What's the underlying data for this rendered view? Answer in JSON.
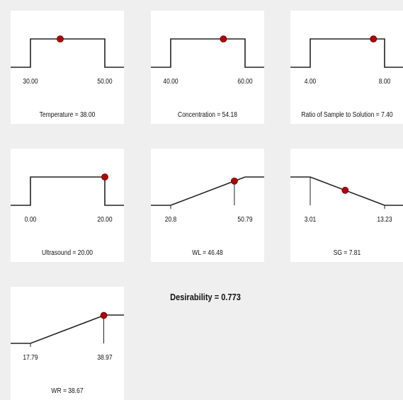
{
  "desirability_label": "Desirability = 0.773",
  "colors": {
    "point": "#b30000",
    "line": "#222222"
  },
  "chart_data": [
    {
      "type": "line",
      "shape": "plateau",
      "low_label": "30.00",
      "high_label": "50.00",
      "value": 38.0,
      "title": "Temperature = 38.00"
    },
    {
      "type": "line",
      "shape": "plateau",
      "low_label": "40.00",
      "high_label": "60.00",
      "value": 54.18,
      "title": "Concentration = 54.18"
    },
    {
      "type": "line",
      "shape": "plateau",
      "low_label": "4.00",
      "high_label": "8.00",
      "value": 7.4,
      "title": "Ratio of Sample to Solution  = 7.40"
    },
    {
      "type": "line",
      "shape": "plateau",
      "low_label": "0.00",
      "high_label": "20.00",
      "value": 20.0,
      "title": "Ultrasound = 20.00"
    },
    {
      "type": "line",
      "shape": "increasing",
      "low_label": "20.8",
      "high_label": "50.79",
      "value": 46.48,
      "title": "WL = 46.48"
    },
    {
      "type": "line",
      "shape": "decreasing",
      "low_label": "3.01",
      "high_label": "13.23",
      "value": 7.81,
      "title": "SG = 7.81"
    },
    {
      "type": "line",
      "shape": "increasing",
      "low_label": "17.79",
      "high_label": "38.97",
      "value": 38.67,
      "title": "WR = 38.67"
    }
  ]
}
